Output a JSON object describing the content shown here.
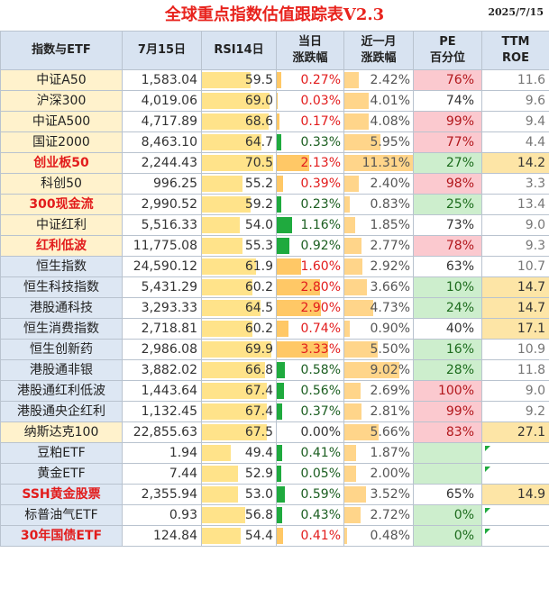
{
  "title": "全球重点指数估值跟踪表V2.3",
  "date": "2025/7/15",
  "headers": {
    "name": "指数与ETF",
    "price": "7月15日",
    "rsi": "RSI14日",
    "day_1": "当日",
    "day_2": "涨跌幅",
    "month_1": "近一月",
    "month_2": "涨跌幅",
    "pe_1": "PE",
    "pe_2": "百分位",
    "roe_1": "TTM",
    "roe_2": "ROE"
  },
  "colors": {
    "title": "#e8231d",
    "positive": "#e21c1c",
    "negative": "#1b5e20",
    "pe_high": "#fbc9cf",
    "pe_low": "#cdeecd",
    "bar_rsi": "#ffe38a",
    "bar_day": "#ffc866"
  },
  "rows": [
    {
      "name": "中证A50",
      "name_style": "yellow",
      "name_red": false,
      "price": "1,583.04",
      "rsi": "59.5",
      "rsi_v": 59.5,
      "day": "0.27%",
      "day_v": 0.27,
      "month": "2.42%",
      "month_v": 2.42,
      "pe": "76%",
      "pe_v": 76,
      "roe": "11.6",
      "roe_hl": false
    },
    {
      "name": "沪深300",
      "name_style": "yellow",
      "name_red": false,
      "price": "4,019.06",
      "rsi": "69.0",
      "rsi_v": 69.0,
      "day": "0.03%",
      "day_v": 0.03,
      "month": "4.01%",
      "month_v": 4.01,
      "pe": "74%",
      "pe_v": 74,
      "roe": "9.6",
      "roe_hl": false
    },
    {
      "name": "中证A500",
      "name_style": "yellow",
      "name_red": false,
      "price": "4,717.89",
      "rsi": "68.6",
      "rsi_v": 68.6,
      "day": "0.17%",
      "day_v": 0.17,
      "month": "4.08%",
      "month_v": 4.08,
      "pe": "99%",
      "pe_v": 99,
      "roe": "9.4",
      "roe_hl": false
    },
    {
      "name": "国证2000",
      "name_style": "yellow",
      "name_red": false,
      "price": "8,463.10",
      "rsi": "64.7",
      "rsi_v": 64.7,
      "day": "0.33%",
      "day_v": -0.33,
      "month": "5.95%",
      "month_v": 5.95,
      "pe": "77%",
      "pe_v": 77,
      "roe": "4.4",
      "roe_hl": false
    },
    {
      "name": "创业板50",
      "name_style": "yellow",
      "name_red": true,
      "price": "2,244.43",
      "rsi": "70.5",
      "rsi_v": 70.5,
      "day": "2.13%",
      "day_v": 2.13,
      "month": "11.31%",
      "month_v": 11.31,
      "pe": "27%",
      "pe_v": 27,
      "roe": "14.2",
      "roe_hl": true
    },
    {
      "name": "科创50",
      "name_style": "yellow",
      "name_red": false,
      "price": "996.25",
      "rsi": "55.2",
      "rsi_v": 55.2,
      "day": "0.39%",
      "day_v": 0.39,
      "month": "2.40%",
      "month_v": 2.4,
      "pe": "98%",
      "pe_v": 98,
      "roe": "3.3",
      "roe_hl": false
    },
    {
      "name": "300现金流",
      "name_style": "yellow",
      "name_red": true,
      "price": "2,990.52",
      "rsi": "59.2",
      "rsi_v": 59.2,
      "day": "0.23%",
      "day_v": -0.23,
      "month": "0.83%",
      "month_v": 0.83,
      "pe": "25%",
      "pe_v": 25,
      "roe": "13.4",
      "roe_hl": false
    },
    {
      "name": "中证红利",
      "name_style": "yellow",
      "name_red": false,
      "price": "5,516.33",
      "rsi": "54.0",
      "rsi_v": 54.0,
      "day": "1.16%",
      "day_v": -1.16,
      "month": "1.85%",
      "month_v": 1.85,
      "pe": "73%",
      "pe_v": 73,
      "roe": "9.0",
      "roe_hl": false
    },
    {
      "name": "红利低波",
      "name_style": "yellow",
      "name_red": true,
      "price": "11,775.08",
      "rsi": "55.3",
      "rsi_v": 55.3,
      "day": "0.92%",
      "day_v": -0.92,
      "month": "2.77%",
      "month_v": 2.77,
      "pe": "78%",
      "pe_v": 78,
      "roe": "9.3",
      "roe_hl": false
    },
    {
      "name": "恒生指数",
      "name_style": "blue",
      "name_red": false,
      "price": "24,590.12",
      "rsi": "61.9",
      "rsi_v": 61.9,
      "day": "1.60%",
      "day_v": 1.6,
      "month": "2.92%",
      "month_v": 2.92,
      "pe": "63%",
      "pe_v": 63,
      "roe": "10.7",
      "roe_hl": false
    },
    {
      "name": "恒生科技指数",
      "name_style": "blue",
      "name_red": false,
      "price": "5,431.29",
      "rsi": "60.2",
      "rsi_v": 60.2,
      "day": "2.80%",
      "day_v": 2.8,
      "month": "3.66%",
      "month_v": 3.66,
      "pe": "10%",
      "pe_v": 10,
      "roe": "14.7",
      "roe_hl": true
    },
    {
      "name": "港股通科技",
      "name_style": "blue",
      "name_red": false,
      "price": "3,293.33",
      "rsi": "64.5",
      "rsi_v": 64.5,
      "day": "2.90%",
      "day_v": 2.9,
      "month": "4.73%",
      "month_v": 4.73,
      "pe": "24%",
      "pe_v": 24,
      "roe": "14.7",
      "roe_hl": true
    },
    {
      "name": "恒生消费指数",
      "name_style": "blue",
      "name_red": false,
      "price": "2,718.81",
      "rsi": "60.2",
      "rsi_v": 60.2,
      "day": "0.74%",
      "day_v": 0.74,
      "month": "0.90%",
      "month_v": 0.9,
      "pe": "40%",
      "pe_v": 40,
      "roe": "17.1",
      "roe_hl": true
    },
    {
      "name": "恒生创新药",
      "name_style": "blue",
      "name_red": false,
      "price": "2,986.08",
      "rsi": "69.9",
      "rsi_v": 69.9,
      "day": "3.33%",
      "day_v": 3.33,
      "month": "5.50%",
      "month_v": 5.5,
      "pe": "16%",
      "pe_v": 16,
      "roe": "10.9",
      "roe_hl": false
    },
    {
      "name": "港股通非银",
      "name_style": "blue",
      "name_red": false,
      "price": "3,882.02",
      "rsi": "66.8",
      "rsi_v": 66.8,
      "day": "0.58%",
      "day_v": -0.58,
      "month": "9.02%",
      "month_v": 9.02,
      "pe": "28%",
      "pe_v": 28,
      "roe": "11.8",
      "roe_hl": false
    },
    {
      "name": "港股通红利低波",
      "name_style": "blue",
      "name_red": false,
      "price": "1,443.64",
      "rsi": "67.4",
      "rsi_v": 67.4,
      "day": "0.56%",
      "day_v": -0.56,
      "month": "2.69%",
      "month_v": 2.69,
      "pe": "100%",
      "pe_v": 100,
      "roe": "9.0",
      "roe_hl": false
    },
    {
      "name": "港股通央企红利",
      "name_style": "blue",
      "name_red": false,
      "price": "1,132.45",
      "rsi": "67.4",
      "rsi_v": 67.4,
      "day": "0.37%",
      "day_v": -0.37,
      "month": "2.81%",
      "month_v": 2.81,
      "pe": "99%",
      "pe_v": 99,
      "roe": "9.2",
      "roe_hl": false
    },
    {
      "name": "纳斯达克100",
      "name_style": "yellow",
      "name_red": false,
      "price": "22,855.63",
      "rsi": "67.5",
      "rsi_v": 67.5,
      "day": "0.00%",
      "day_v": 0,
      "month": "5.66%",
      "month_v": 5.66,
      "pe": "83%",
      "pe_v": 83,
      "roe": "27.1",
      "roe_hl": true
    },
    {
      "name": "豆粕ETF",
      "name_style": "blue",
      "name_red": false,
      "price": "1.94",
      "rsi": "49.4",
      "rsi_v": 49.4,
      "day": "0.41%",
      "day_v": -0.41,
      "month": "1.87%",
      "month_v": 1.87,
      "pe": "",
      "pe_v": null,
      "roe": "",
      "roe_hl": false,
      "flag": true
    },
    {
      "name": "黄金ETF",
      "name_style": "blue",
      "name_red": false,
      "price": "7.44",
      "rsi": "52.9",
      "rsi_v": 52.9,
      "day": "0.05%",
      "day_v": -0.05,
      "month": "2.00%",
      "month_v": 2.0,
      "pe": "",
      "pe_v": null,
      "roe": "",
      "roe_hl": false,
      "flag": true
    },
    {
      "name": "SSH黄金股票",
      "name_style": "blue",
      "name_red": true,
      "price": "2,355.94",
      "rsi": "53.0",
      "rsi_v": 53.0,
      "day": "0.59%",
      "day_v": -0.59,
      "month": "3.52%",
      "month_v": 3.52,
      "pe": "65%",
      "pe_v": 65,
      "roe": "14.9",
      "roe_hl": true
    },
    {
      "name": "标普油气ETF",
      "name_style": "blue",
      "name_red": false,
      "price": "0.93",
      "rsi": "56.8",
      "rsi_v": 56.8,
      "day": "0.43%",
      "day_v": -0.43,
      "month": "2.72%",
      "month_v": 2.72,
      "pe": "0%",
      "pe_v": 0,
      "roe": "",
      "roe_hl": false,
      "flag": true
    },
    {
      "name": "30年国债ETF",
      "name_style": "blue",
      "name_red": true,
      "price": "124.84",
      "rsi": "54.4",
      "rsi_v": 54.4,
      "day": "0.41%",
      "day_v": 0.41,
      "month": "0.48%",
      "month_v": 0.48,
      "pe": "0%",
      "pe_v": 0,
      "roe": "",
      "roe_hl": false,
      "flag": true
    }
  ]
}
